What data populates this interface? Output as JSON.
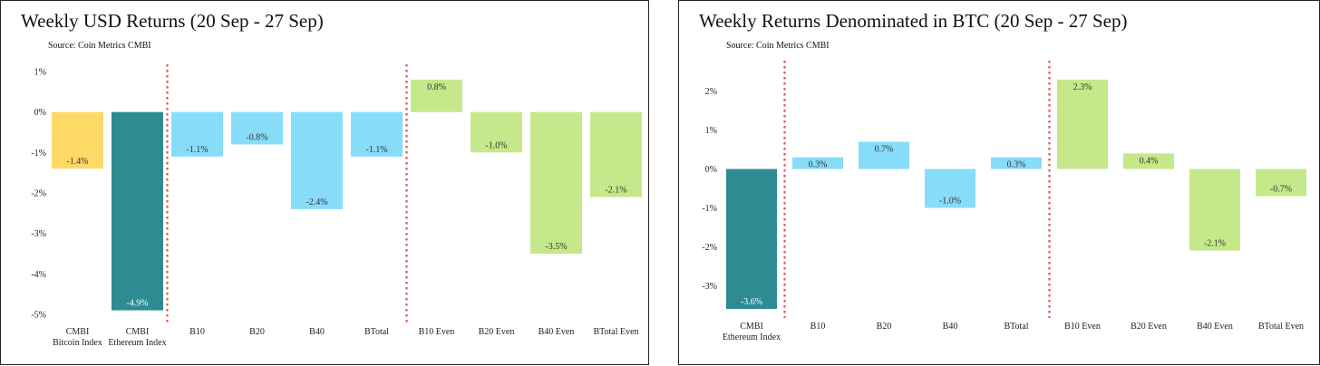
{
  "chart_data": [
    {
      "type": "bar",
      "title": "Weekly USD Returns (20 Sep - 27 Sep)",
      "subtitle": "Source: Coin Metrics CMBI",
      "categories": [
        "CMBI Bitcoin Index",
        "CMBI Ethereum Index",
        "B10",
        "B20",
        "B40",
        "BTotal",
        "B10 Even",
        "B20 Even",
        "B40 Even",
        "BTotal Even"
      ],
      "category_lines": [
        [
          "CMBI",
          "Bitcoin Index"
        ],
        [
          "CMBI",
          "Ethereum Index"
        ],
        [
          "B10"
        ],
        [
          "B20"
        ],
        [
          "B40"
        ],
        [
          "BTotal"
        ],
        [
          "B10 Even"
        ],
        [
          "B20 Even"
        ],
        [
          "B40 Even"
        ],
        [
          "BTotal Even"
        ]
      ],
      "values": [
        -1.4,
        -4.9,
        -1.1,
        -0.8,
        -2.4,
        -1.1,
        0.8,
        -1.0,
        -3.5,
        -2.1
      ],
      "labels": [
        "-1.4%",
        "-4.9%",
        "-1.1%",
        "-0.8%",
        "-2.4%",
        "-1.1%",
        "0.8%",
        "-1.0%",
        "-3.5%",
        "-2.1%"
      ],
      "colors": [
        "#FFD966",
        "#2E8B91",
        "#87DCFA",
        "#87DCFA",
        "#87DCFA",
        "#87DCFA",
        "#C5E88A",
        "#C5E88A",
        "#C5E88A",
        "#C5E88A"
      ],
      "label_colors": [
        "#333333",
        "#ffffff",
        "#333333",
        "#333333",
        "#333333",
        "#333333",
        "#333333",
        "#333333",
        "#333333",
        "#333333"
      ],
      "ylim": [
        -5,
        1
      ],
      "yticks": [
        1,
        0,
        -1,
        -2,
        -3,
        -4,
        -5
      ],
      "ytick_labels": [
        "1%",
        "0%",
        "-1%",
        "-2%",
        "-3%",
        "-4%",
        "-5%"
      ],
      "separators_after": [
        1,
        5
      ],
      "separator_color": "#E05555",
      "grid": false,
      "xlabel": "",
      "ylabel": ""
    },
    {
      "type": "bar",
      "title": "Weekly Returns Denominated in BTC (20 Sep - 27 Sep)",
      "subtitle": "Source: Coin Metrics CMBI",
      "categories": [
        "CMBI Ethereum Index",
        "B10",
        "B20",
        "B40",
        "BTotal",
        "B10 Even",
        "B20 Even",
        "B40 Even",
        "BTotal Even"
      ],
      "category_lines": [
        [
          "CMBI",
          "Ethereum Index"
        ],
        [
          "B10"
        ],
        [
          "B20"
        ],
        [
          "B40"
        ],
        [
          "BTotal"
        ],
        [
          "B10 Even"
        ],
        [
          "B20 Even"
        ],
        [
          "B40 Even"
        ],
        [
          "BTotal Even"
        ]
      ],
      "values": [
        -3.6,
        0.3,
        0.7,
        -1.0,
        0.3,
        2.3,
        0.4,
        -2.1,
        -0.7
      ],
      "labels": [
        "-3.6%",
        "0.3%",
        "0.7%",
        "-1.0%",
        "0.3%",
        "2.3%",
        "0.4%",
        "-2.1%",
        "-0.7%"
      ],
      "colors": [
        "#2E8B91",
        "#87DCFA",
        "#87DCFA",
        "#87DCFA",
        "#87DCFA",
        "#C5E88A",
        "#C5E88A",
        "#C5E88A",
        "#C5E88A"
      ],
      "label_colors": [
        "#ffffff",
        "#333333",
        "#333333",
        "#333333",
        "#333333",
        "#333333",
        "#333333",
        "#333333",
        "#333333"
      ],
      "ylim": [
        -3.6,
        2.6
      ],
      "yticks": [
        2,
        1,
        0,
        -1,
        -2,
        -3
      ],
      "ytick_labels": [
        "2%",
        "1%",
        "0%",
        "-1%",
        "-2%",
        "-3%"
      ],
      "separators_after": [
        0,
        4
      ],
      "separator_color": "#E05555",
      "grid": false,
      "xlabel": "",
      "ylabel": ""
    }
  ]
}
